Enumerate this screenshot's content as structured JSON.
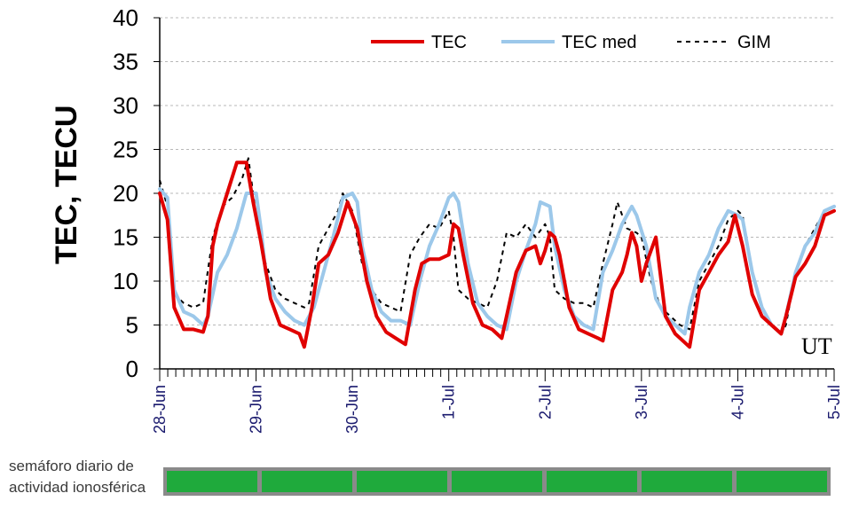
{
  "chart_data": {
    "type": "line",
    "title": "",
    "ylabel": "TEC, TECU",
    "xlabel": "UT",
    "ylim": [
      0,
      40
    ],
    "yticks": [
      "0",
      "5",
      "10",
      "15",
      "20",
      "25",
      "30",
      "35",
      "40"
    ],
    "xlim_days": [
      0,
      7
    ],
    "xticks": [
      "28-Jun",
      "29-Jun",
      "30-Jun",
      "1-Jul",
      "2-Jul",
      "3-Jul",
      "4-Jul",
      "5-Jul"
    ],
    "grid": "horizontal dashed",
    "legend_position": "top-right",
    "series": [
      {
        "name": "TEC",
        "color": "#e00000",
        "style": "solid",
        "x": [
          0,
          0.08,
          0.15,
          0.25,
          0.35,
          0.45,
          0.5,
          0.55,
          0.6,
          0.7,
          0.8,
          0.9,
          0.97,
          1.05,
          1.15,
          1.25,
          1.35,
          1.45,
          1.5,
          1.58,
          1.65,
          1.75,
          1.85,
          1.95,
          2.05,
          2.15,
          2.25,
          2.35,
          2.45,
          2.55,
          2.65,
          2.72,
          2.8,
          2.9,
          3.0,
          3.05,
          3.1,
          3.15,
          3.25,
          3.35,
          3.45,
          3.55,
          3.6,
          3.7,
          3.8,
          3.9,
          3.95,
          4.0,
          4.05,
          4.1,
          4.15,
          4.25,
          4.35,
          4.45,
          4.55,
          4.6,
          4.7,
          4.8,
          4.85,
          4.9,
          4.95,
          5.0,
          5.05,
          5.15,
          5.25,
          5.35,
          5.45,
          5.5,
          5.6,
          5.7,
          5.8,
          5.9,
          5.97,
          6.05,
          6.15,
          6.25,
          6.35,
          6.45,
          6.5,
          6.6,
          6.7,
          6.8,
          6.9,
          7.0
        ],
        "values": [
          20,
          17,
          7,
          4.5,
          4.5,
          4.2,
          6,
          14,
          16.5,
          20,
          23.5,
          23.5,
          19,
          14.5,
          8,
          5,
          4.5,
          4,
          2.5,
          7,
          12,
          13,
          15.5,
          19,
          16,
          10,
          6,
          4.2,
          3.5,
          2.8,
          9,
          12,
          12.5,
          12.5,
          13,
          16.5,
          16,
          13,
          7.5,
          5,
          4.5,
          3.5,
          6,
          11,
          13.5,
          14,
          12,
          13.5,
          15.5,
          15,
          13,
          7,
          4.5,
          4,
          3.5,
          3.2,
          9,
          11,
          13,
          15.5,
          14,
          10,
          12,
          15,
          6,
          4,
          3,
          2.5,
          9,
          11,
          13,
          14.5,
          17.5,
          14,
          8.5,
          6,
          5,
          4,
          6,
          10.5,
          12,
          14,
          17.5,
          18
        ]
      },
      {
        "name": "TEC med",
        "color": "#9cc8ea",
        "style": "solid",
        "x": [
          0,
          0.08,
          0.15,
          0.25,
          0.35,
          0.45,
          0.5,
          0.6,
          0.7,
          0.8,
          0.9,
          1.0,
          1.05,
          1.1,
          1.2,
          1.3,
          1.4,
          1.5,
          1.6,
          1.7,
          1.8,
          1.9,
          2.0,
          2.05,
          2.1,
          2.2,
          2.3,
          2.4,
          2.5,
          2.6,
          2.7,
          2.8,
          2.9,
          3.0,
          3.05,
          3.1,
          3.2,
          3.3,
          3.4,
          3.5,
          3.6,
          3.7,
          3.8,
          3.9,
          3.95,
          4.05,
          4.1,
          4.2,
          4.3,
          4.4,
          4.5,
          4.6,
          4.7,
          4.8,
          4.9,
          4.95,
          5.05,
          5.15,
          5.25,
          5.35,
          5.45,
          5.5,
          5.6,
          5.7,
          5.8,
          5.9,
          6.0,
          6.05,
          6.15,
          6.25,
          6.35,
          6.45,
          6.5,
          6.6,
          6.7,
          6.8,
          6.9,
          7.0
        ],
        "values": [
          20.5,
          19.5,
          9,
          6.5,
          6,
          5,
          6,
          11,
          13,
          16,
          20,
          20,
          16,
          11,
          8,
          6.5,
          5.5,
          5,
          7,
          11,
          15,
          19.5,
          20,
          19,
          14,
          9,
          6.5,
          5.5,
          5.5,
          5,
          10,
          14,
          16.5,
          19.5,
          20,
          19,
          12,
          7.5,
          6,
          5,
          4.5,
          10,
          13.5,
          16.5,
          19,
          18.5,
          14,
          9,
          6,
          5,
          4.5,
          11,
          13.5,
          16.5,
          18.5,
          17.5,
          14,
          8,
          6,
          5,
          4,
          7,
          11,
          13,
          16,
          18,
          17.5,
          17,
          11,
          7,
          5,
          4,
          6,
          11,
          14,
          15.5,
          18,
          18.5
        ]
      },
      {
        "name": "GIM",
        "color": "#000000",
        "style": "dashed",
        "x": [
          0,
          0.08,
          0.15,
          0.25,
          0.35,
          0.45,
          0.55,
          0.65,
          0.75,
          0.85,
          0.92,
          1.0,
          1.1,
          1.2,
          1.3,
          1.4,
          1.5,
          1.55,
          1.65,
          1.75,
          1.85,
          1.9,
          2.0,
          2.1,
          2.2,
          2.3,
          2.4,
          2.5,
          2.6,
          2.7,
          2.8,
          2.9,
          3.0,
          3.05,
          3.1,
          3.2,
          3.3,
          3.4,
          3.5,
          3.6,
          3.7,
          3.8,
          3.9,
          4.0,
          4.05,
          4.1,
          4.2,
          4.3,
          4.4,
          4.5,
          4.6,
          4.7,
          4.75,
          4.85,
          4.95,
          5.0,
          5.1,
          5.2,
          5.3,
          5.4,
          5.5,
          5.6,
          5.7,
          5.8,
          5.9,
          6.0,
          6.05,
          6.15,
          6.25,
          6.35,
          6.45,
          6.5,
          6.6,
          6.7,
          6.8,
          6.9,
          7.0
        ],
        "values": [
          21.5,
          18.5,
          8.5,
          7.5,
          7,
          7.5,
          15,
          18.5,
          19.5,
          21.5,
          24,
          17.5,
          12,
          9,
          8,
          7.5,
          7,
          7.5,
          14,
          16,
          18,
          20,
          18,
          12,
          9,
          7.5,
          7,
          6.5,
          13,
          15,
          16.5,
          16,
          18,
          15,
          9,
          8,
          7.5,
          7,
          10,
          15.5,
          15,
          16.5,
          15,
          16.5,
          15,
          9,
          8,
          7.5,
          7.5,
          7,
          12,
          16.5,
          19,
          16,
          15.5,
          15,
          10,
          7,
          6,
          5,
          4.5,
          10,
          12,
          14,
          17,
          18,
          17.5,
          11,
          7,
          5,
          4,
          5,
          11,
          14,
          16,
          18,
          18.5
        ]
      }
    ]
  },
  "semaphore": {
    "label_line1": "semáforo diario de",
    "label_line2": "actividad ionosférica",
    "days": [
      {
        "status": "green"
      },
      {
        "status": "green"
      },
      {
        "status": "green"
      },
      {
        "status": "green"
      },
      {
        "status": "green"
      },
      {
        "status": "green"
      },
      {
        "status": "green"
      }
    ]
  }
}
